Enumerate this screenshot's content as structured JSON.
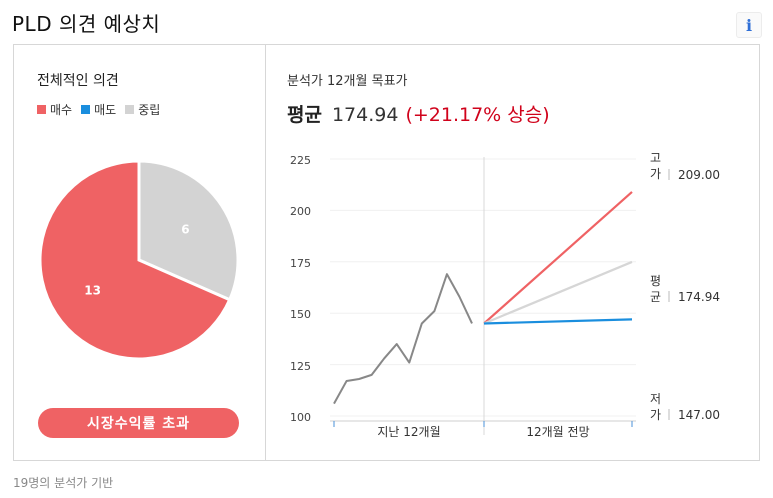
{
  "header": {
    "title": "PLD 의견 예상치",
    "info_icon": "i"
  },
  "left_panel": {
    "title": "전체적인 의견",
    "legend": [
      {
        "label": "매수",
        "color": "#ef6264"
      },
      {
        "label": "매도",
        "color": "#1a8ede"
      },
      {
        "label": "중립",
        "color": "#d3d3d3"
      }
    ],
    "button_label": "시장수익률 초과"
  },
  "right_panel": {
    "title": "분석가 12개월 목표가",
    "avg_label": "평균",
    "avg_value": "174.94",
    "avg_change": "(+21.17% 상승)",
    "label_high": "고가",
    "label_avg": "평균",
    "label_low": "저가",
    "value_high": "209.00",
    "value_avg": "174.94",
    "value_low": "147.00",
    "x_label_past": "지난 12개월",
    "x_label_future": "12개월 전망"
  },
  "footer": {
    "note": "19명의 분석가 기반"
  },
  "chart_data": [
    {
      "type": "pie",
      "slices": [
        {
          "name": "매수",
          "value": 13,
          "color": "#ef6264"
        },
        {
          "name": "중립",
          "value": 6,
          "color": "#d3d3d3"
        }
      ]
    },
    {
      "type": "line",
      "ylim": [
        100,
        225
      ],
      "yticks": [
        225,
        200,
        175,
        150,
        125,
        100
      ],
      "past_prices": [
        106,
        117,
        118,
        120,
        128,
        135,
        126,
        145,
        151,
        169,
        158,
        145
      ],
      "start_value": 145,
      "projections": [
        {
          "name": "고가",
          "value": 209.0,
          "color": "#ef6264"
        },
        {
          "name": "평균",
          "value": 174.94,
          "color": "#d6d6d6"
        },
        {
          "name": "저가",
          "value": 147.0,
          "color": "#1a8ede"
        }
      ],
      "history_color": "#888888"
    }
  ]
}
